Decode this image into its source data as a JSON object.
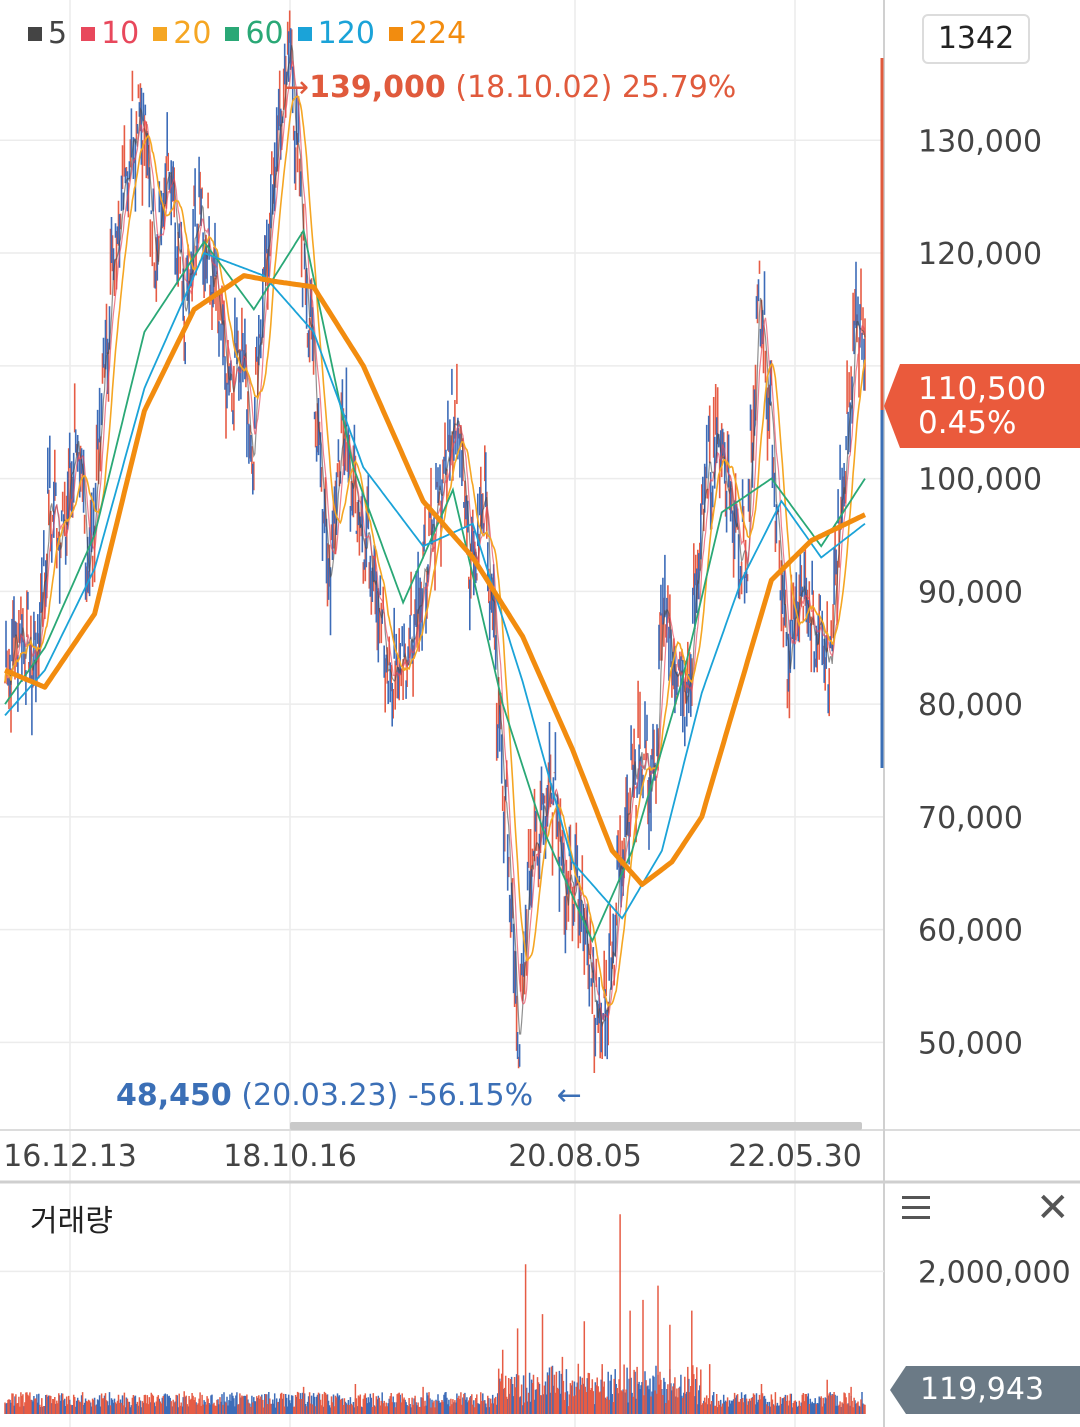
{
  "header": {
    "legend": [
      {
        "label": "5",
        "color": "#444444"
      },
      {
        "label": "10",
        "color": "#e8485c"
      },
      {
        "label": "20",
        "color": "#f5a623"
      },
      {
        "label": "60",
        "color": "#2aa876"
      },
      {
        "label": "120",
        "color": "#1ba3d8"
      },
      {
        "label": "224",
        "color": "#f28c0f"
      }
    ],
    "count": "1342"
  },
  "annotations": {
    "high": {
      "arrow": "→",
      "price": "139,000",
      "date": "(18.10.02)",
      "pct": "25.79%",
      "color": "#e05a3c"
    },
    "low": {
      "arrow": "←",
      "price": "48,450",
      "date": "(20.03.23)",
      "pct": "-56.15%",
      "color": "#3b6fb6"
    }
  },
  "current_price": {
    "price": "110,500",
    "change": "0.45%"
  },
  "volume_panel": {
    "title": "거래량",
    "current": "119,943"
  },
  "chart_data": [
    {
      "type": "line",
      "y_ticks": [
        50000,
        60000,
        70000,
        80000,
        90000,
        100000,
        110000,
        120000,
        130000
      ],
      "y_tick_labels": [
        "50,000",
        "60,000",
        "70,000",
        "80,000",
        "90,000",
        "100,000",
        "",
        "120,000",
        "130,000"
      ],
      "x_tick_labels": [
        "16.12.13",
        "18.10.16",
        "20.08.05",
        "22.05.30"
      ],
      "ylim": [
        44000,
        142000
      ],
      "price": [
        [
          0,
          82000
        ],
        [
          15,
          87000
        ],
        [
          30,
          83000
        ],
        [
          45,
          98000
        ],
        [
          60,
          95000
        ],
        [
          70,
          104000
        ],
        [
          85,
          92000
        ],
        [
          100,
          110000
        ],
        [
          110,
          120000
        ],
        [
          122,
          128000
        ],
        [
          136,
          134000
        ],
        [
          150,
          121000
        ],
        [
          165,
          127000
        ],
        [
          180,
          114000
        ],
        [
          195,
          124000
        ],
        [
          210,
          118000
        ],
        [
          225,
          109000
        ],
        [
          240,
          112000
        ],
        [
          248,
          101000
        ],
        [
          260,
          118000
        ],
        [
          272,
          128000
        ],
        [
          286,
          139000
        ],
        [
          298,
          122000
        ],
        [
          310,
          110000
        ],
        [
          325,
          92000
        ],
        [
          340,
          104000
        ],
        [
          355,
          97000
        ],
        [
          370,
          93000
        ],
        [
          385,
          82000
        ],
        [
          400,
          84000
        ],
        [
          420,
          90000
        ],
        [
          440,
          101000
        ],
        [
          455,
          106000
        ],
        [
          468,
          93000
        ],
        [
          482,
          98000
        ],
        [
          496,
          79000
        ],
        [
          506,
          66000
        ],
        [
          516,
          48450
        ],
        [
          528,
          67000
        ],
        [
          548,
          74000
        ],
        [
          562,
          64000
        ],
        [
          578,
          62000
        ],
        [
          590,
          55000
        ],
        [
          600,
          50500
        ],
        [
          612,
          60000
        ],
        [
          625,
          72000
        ],
        [
          640,
          76000
        ],
        [
          652,
          72000
        ],
        [
          662,
          90000
        ],
        [
          672,
          83000
        ],
        [
          686,
          80000
        ],
        [
          700,
          97000
        ],
        [
          715,
          104000
        ],
        [
          730,
          98000
        ],
        [
          745,
          92000
        ],
        [
          758,
          117000
        ],
        [
          770,
          104000
        ],
        [
          785,
          84000
        ],
        [
          800,
          90000
        ],
        [
          815,
          86000
        ],
        [
          828,
          83000
        ],
        [
          840,
          99000
        ],
        [
          856,
          114000
        ],
        [
          862,
          110500
        ]
      ],
      "ma224": [
        [
          0,
          83000
        ],
        [
          40,
          81500
        ],
        [
          90,
          88000
        ],
        [
          140,
          106000
        ],
        [
          190,
          115000
        ],
        [
          240,
          118000
        ],
        [
          270,
          117500
        ],
        [
          310,
          117000
        ],
        [
          360,
          110000
        ],
        [
          420,
          98000
        ],
        [
          470,
          93000
        ],
        [
          520,
          86000
        ],
        [
          570,
          76000
        ],
        [
          610,
          67000
        ],
        [
          640,
          64000
        ],
        [
          670,
          66000
        ],
        [
          700,
          70000
        ],
        [
          740,
          82000
        ],
        [
          770,
          91000
        ],
        [
          810,
          94500
        ],
        [
          864,
          96800
        ]
      ],
      "ma120": [
        [
          0,
          79000
        ],
        [
          40,
          83000
        ],
        [
          90,
          92000
        ],
        [
          140,
          108000
        ],
        [
          200,
          120000
        ],
        [
          260,
          118000
        ],
        [
          310,
          113000
        ],
        [
          360,
          101000
        ],
        [
          420,
          94000
        ],
        [
          470,
          96000
        ],
        [
          520,
          82000
        ],
        [
          570,
          66000
        ],
        [
          620,
          61000
        ],
        [
          660,
          67000
        ],
        [
          700,
          81000
        ],
        [
          740,
          91000
        ],
        [
          780,
          98000
        ],
        [
          820,
          93000
        ],
        [
          864,
          96000
        ]
      ],
      "ma60": [
        [
          0,
          80000
        ],
        [
          40,
          85000
        ],
        [
          90,
          95000
        ],
        [
          140,
          113000
        ],
        [
          200,
          121000
        ],
        [
          250,
          115000
        ],
        [
          300,
          122000
        ],
        [
          350,
          101000
        ],
        [
          400,
          89000
        ],
        [
          450,
          99000
        ],
        [
          500,
          80000
        ],
        [
          540,
          69000
        ],
        [
          590,
          59000
        ],
        [
          630,
          67000
        ],
        [
          680,
          82000
        ],
        [
          720,
          97000
        ],
        [
          770,
          100000
        ],
        [
          820,
          94000
        ],
        [
          864,
          100000
        ]
      ]
    },
    {
      "type": "bar",
      "y_ticks": [
        2000000
      ],
      "y_tick_labels": [
        "2,000,000"
      ],
      "ylim": [
        0,
        3000000
      ],
      "spikes": [
        [
          45,
          260000
        ],
        [
          120,
          300000
        ],
        [
          180,
          320000
        ],
        [
          238,
          260000
        ],
        [
          300,
          380000
        ],
        [
          352,
          420000
        ],
        [
          420,
          380000
        ],
        [
          500,
          900000
        ],
        [
          515,
          1200000
        ],
        [
          523,
          2100000
        ],
        [
          540,
          1400000
        ],
        [
          560,
          800000
        ],
        [
          582,
          1300000
        ],
        [
          600,
          700000
        ],
        [
          618,
          2800000
        ],
        [
          628,
          1450000
        ],
        [
          641,
          1600000
        ],
        [
          656,
          1800000
        ],
        [
          668,
          1250000
        ],
        [
          690,
          1450000
        ],
        [
          708,
          700000
        ],
        [
          760,
          420000
        ],
        [
          826,
          480000
        ],
        [
          850,
          380000
        ]
      ]
    }
  ]
}
